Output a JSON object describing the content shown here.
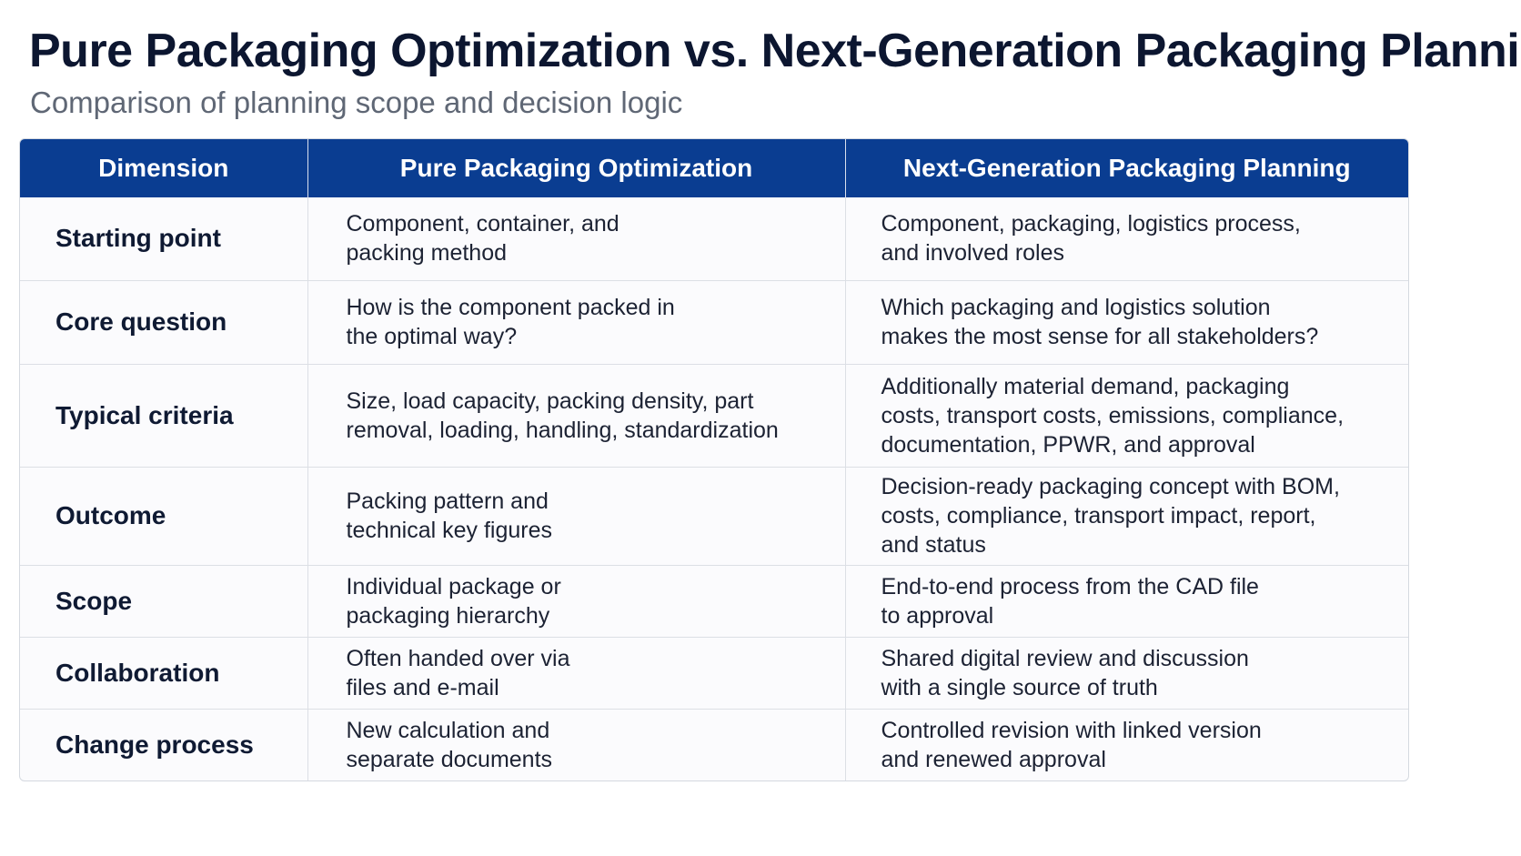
{
  "header": {
    "title": "Pure Packaging Optimization vs. Next-Generation Packaging Planning",
    "subtitle": "Comparison of planning scope and decision logic"
  },
  "table": {
    "columns": [
      "Dimension",
      "Pure Packaging Optimization",
      "Next-Generation Packaging Planning"
    ],
    "rows": [
      {
        "dimension": "Starting point",
        "pure": [
          "Component, container, and",
          "packing method"
        ],
        "next": [
          "Component, packaging, logistics process,",
          "and involved roles"
        ]
      },
      {
        "dimension": "Core question",
        "pure": [
          "How is the component packed in",
          "the optimal way?"
        ],
        "next": [
          "Which packaging and logistics solution",
          "makes the most sense for all stakeholders?"
        ]
      },
      {
        "dimension": "Typical criteria",
        "pure": [
          "Size, load capacity, packing density, part",
          "removal, loading, handling, standardization"
        ],
        "next": [
          "Additionally material demand, packaging",
          "costs, transport costs, emissions, compliance,",
          "documentation, PPWR, and approval"
        ]
      },
      {
        "dimension": "Outcome",
        "pure": [
          "Packing pattern and",
          "technical key figures"
        ],
        "next": [
          "Decision-ready packaging concept with BOM,",
          "costs, compliance, transport impact, report,",
          "and status"
        ]
      },
      {
        "dimension": "Scope",
        "pure": [
          "Individual package or",
          "packaging hierarchy"
        ],
        "next": [
          "End-to-end process from the CAD file",
          "to approval"
        ]
      },
      {
        "dimension": "Collaboration",
        "pure": [
          "Often handed over via",
          "files and e-mail"
        ],
        "next": [
          "Shared digital review and discussion",
          "with a single source of truth"
        ]
      },
      {
        "dimension": "Change process",
        "pure": [
          "New calculation and",
          "separate documents"
        ],
        "next": [
          "Controlled revision with linked version",
          "and renewed approval"
        ]
      }
    ]
  },
  "colors": {
    "header_bg": "#0a3d91",
    "title": "#0c1630",
    "subtitle": "#5f6775",
    "grid": "#dcdfe5"
  }
}
